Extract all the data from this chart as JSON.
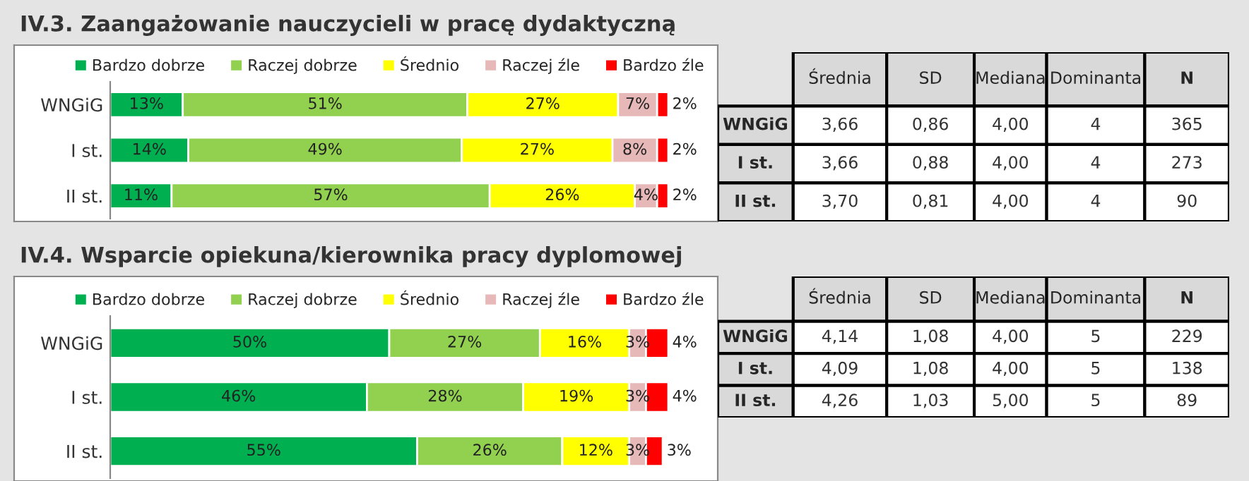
{
  "chart_data": [
    {
      "type": "bar",
      "orientation": "horizontal",
      "stacked": true,
      "title": "IV.3. Zaangażowanie nauczycieli w pracę dydaktyczną",
      "categories": [
        "WNGiG",
        "I st.",
        "II st."
      ],
      "legend": "top",
      "grid": false,
      "series": [
        {
          "name": "Bardzo dobrze",
          "color": "#00b050",
          "values": [
            13,
            14,
            11
          ],
          "value_labels": [
            "13%",
            "14%",
            "11%"
          ]
        },
        {
          "name": "Raczej dobrze",
          "color": "#92d050",
          "values": [
            51,
            49,
            57
          ],
          "value_labels": [
            "51%",
            "49%",
            "57%"
          ]
        },
        {
          "name": "Średnio",
          "color": "#ffff00",
          "values": [
            27,
            27,
            26
          ],
          "value_labels": [
            "27%",
            "27%",
            "26%"
          ]
        },
        {
          "name": "Raczej źle",
          "color": "#e6b8b7",
          "values": [
            7,
            8,
            4
          ],
          "value_labels": [
            "7%",
            "8%",
            "4%"
          ]
        },
        {
          "name": "Bardzo źle",
          "color": "#ff0000",
          "values": [
            2,
            2,
            2
          ],
          "value_labels": [
            "2%",
            "2%",
            "2%"
          ]
        }
      ]
    },
    {
      "type": "other",
      "categories": [
        "Średnia",
        "SD",
        "Mediana",
        "Dominanta",
        "N"
      ],
      "y_categories": [
        "WNGiG",
        "I st.",
        "II st."
      ],
      "cell_labels": [
        [
          "3,66",
          "0,86",
          "4,00",
          "4",
          "365"
        ],
        [
          "3,66",
          "0,88",
          "4,00",
          "4",
          "273"
        ],
        [
          "3,70",
          "0,81",
          "4,00",
          "4",
          "90"
        ]
      ]
    },
    {
      "type": "bar",
      "orientation": "horizontal",
      "stacked": true,
      "title": "IV.4. Wsparcie opiekuna/kierownika pracy dyplomowej",
      "categories": [
        "WNGiG",
        "I st.",
        "II st."
      ],
      "legend": "top",
      "grid": false,
      "series": [
        {
          "name": "Bardzo dobrze",
          "color": "#00b050",
          "values": [
            50,
            46,
            55
          ],
          "value_labels": [
            "50%",
            "46%",
            "55%"
          ]
        },
        {
          "name": "Raczej dobrze",
          "color": "#92d050",
          "values": [
            27,
            28,
            26
          ],
          "value_labels": [
            "27%",
            "28%",
            "26%"
          ]
        },
        {
          "name": "Średnio",
          "color": "#ffff00",
          "values": [
            16,
            19,
            12
          ],
          "value_labels": [
            "16%",
            "19%",
            "12%"
          ]
        },
        {
          "name": "Raczej źle",
          "color": "#e6b8b7",
          "values": [
            3,
            3,
            3
          ],
          "value_labels": [
            "3%",
            "3%",
            "3%"
          ]
        },
        {
          "name": "Bardzo źle",
          "color": "#ff0000",
          "values": [
            4,
            4,
            3
          ],
          "value_labels": [
            "4%",
            "4%",
            "3%"
          ]
        }
      ]
    },
    {
      "type": "other",
      "categories": [
        "Średnia",
        "SD",
        "Mediana",
        "Dominanta",
        "N"
      ],
      "y_categories": [
        "WNGiG",
        "I st.",
        "II st."
      ],
      "cell_labels": [
        [
          "4,14",
          "1,08",
          "4,00",
          "5",
          "229"
        ],
        [
          "4,09",
          "1,08",
          "4,00",
          "5",
          "138"
        ],
        [
          "4,26",
          "1,03",
          "5,00",
          "5",
          "89"
        ]
      ]
    }
  ]
}
